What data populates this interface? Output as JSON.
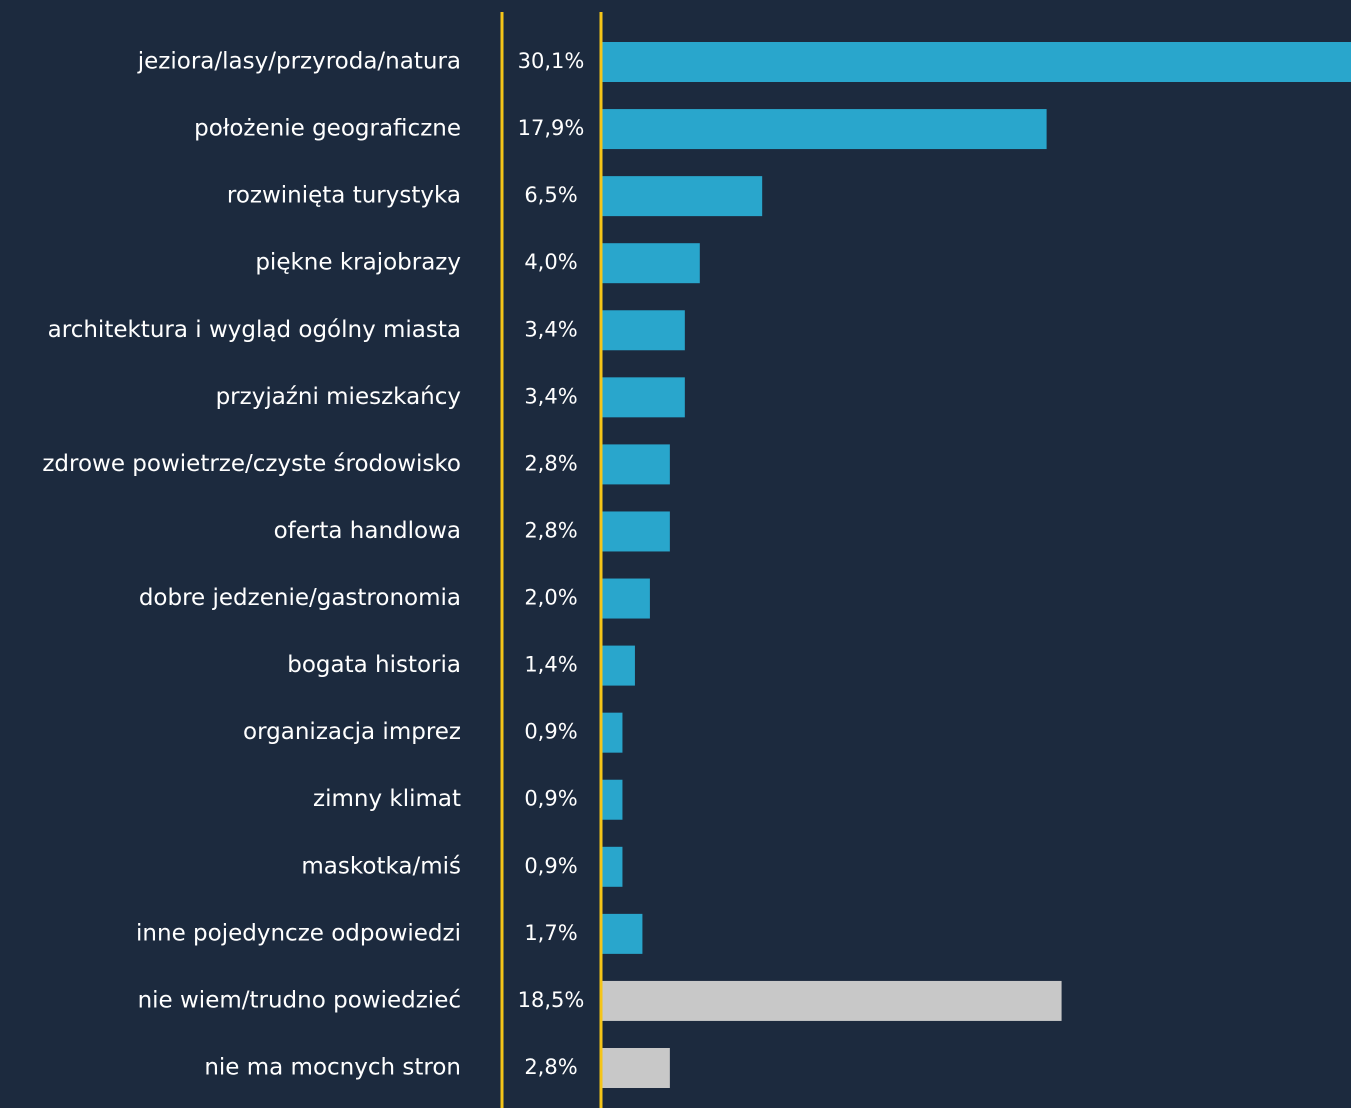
{
  "chart_data": {
    "type": "barh",
    "categories": [
      "jeziora/lasy/przyroda/natura",
      "położenie geograficzne",
      "rozwinięta turystyka",
      "piękne krajobrazy",
      "architektura i wygląd ogólny miasta",
      "przyjaźni mieszkańcy",
      "zdrowe powietrze/czyste środowisko",
      "oferta handlowa",
      "dobre jedzenie/gastronomia",
      "bogata historia",
      "organizacja imprez",
      "zimny klimat",
      "maskotka/miś",
      "inne pojedyncze odpowiedzi",
      "nie wiem/trudno powiedzieć",
      "nie ma mocnych stron"
    ],
    "values": [
      30.1,
      17.9,
      6.5,
      4.0,
      3.4,
      3.4,
      2.8,
      2.8,
      2.0,
      1.4,
      0.9,
      0.9,
      0.9,
      1.7,
      18.5,
      2.8
    ],
    "value_labels": [
      "30,1%",
      "17,9%",
      "6,5%",
      "4,0%",
      "3,4%",
      "3,4%",
      "2,8%",
      "2,8%",
      "2,0%",
      "1,4%",
      "0,9%",
      "0,9%",
      "0,9%",
      "1,7%",
      "18,5%",
      "2,8%"
    ],
    "colors": [
      "#29a6cc",
      "#29a6cc",
      "#29a6cc",
      "#29a6cc",
      "#29a6cc",
      "#29a6cc",
      "#29a6cc",
      "#29a6cc",
      "#29a6cc",
      "#29a6cc",
      "#29a6cc",
      "#29a6cc",
      "#29a6cc",
      "#29a6cc",
      "#c8c8c8",
      "#c8c8c8"
    ]
  }
}
